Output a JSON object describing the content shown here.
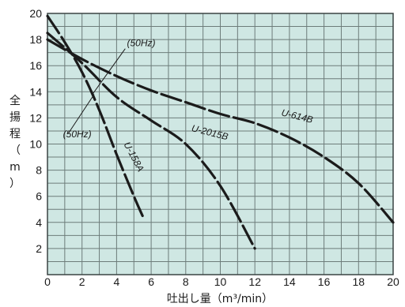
{
  "chart_data": {
    "type": "line",
    "xlabel": "吐出し量（m³/min）",
    "ylabel_chars": [
      "全",
      "揚",
      "程",
      "（",
      "m",
      "）"
    ],
    "xlim": [
      0,
      20
    ],
    "ylim": [
      0,
      20
    ],
    "x_ticks": [
      "0",
      "2",
      "4",
      "6",
      "8",
      "10",
      "12",
      "14",
      "16",
      "18",
      "20"
    ],
    "y_ticks": [
      "2",
      "4",
      "6",
      "8",
      "10",
      "12",
      "14",
      "16",
      "18",
      "20"
    ],
    "grid": true,
    "background_color": "#cfe7e3",
    "grid_color": "#6d7c7a",
    "series": [
      {
        "name": "U-158A",
        "x": [
          0,
          1,
          2,
          3,
          4,
          5,
          5.5
        ],
        "y": [
          19.8,
          17.8,
          15.5,
          12.6,
          9.2,
          6.0,
          4.5
        ]
      },
      {
        "name": "U-2015B",
        "x": [
          0,
          2,
          4,
          6,
          8,
          10,
          12
        ],
        "y": [
          18.5,
          16.2,
          13.6,
          11.8,
          10.0,
          6.8,
          2.0
        ]
      },
      {
        "name": "U-614B",
        "x": [
          0,
          2,
          4,
          6,
          8,
          10,
          12,
          14,
          16,
          18,
          20
        ],
        "y": [
          18.0,
          16.5,
          15.2,
          14.1,
          13.2,
          12.3,
          11.6,
          10.5,
          9.0,
          7.0,
          4.0
        ]
      }
    ],
    "annotations": [
      {
        "text": "(50Hz)",
        "x": 4.6,
        "y": 17.5
      },
      {
        "text": "(50Hz)",
        "x": 0.9,
        "y": 10.5
      }
    ]
  }
}
